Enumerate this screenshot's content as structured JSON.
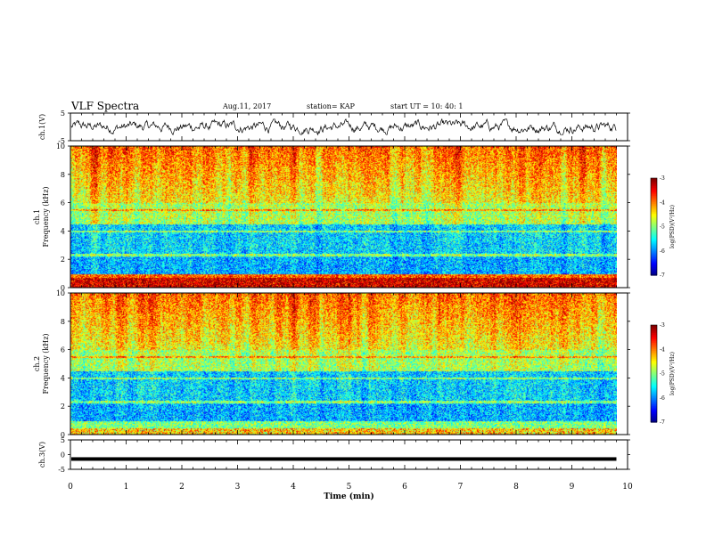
{
  "header": {
    "title": "VLF Spectra",
    "date": "Aug.11, 2017",
    "station": "station= KAP",
    "start": "start UT =  10: 40: 1"
  },
  "chart_data": [
    {
      "type": "line",
      "ylabel": "ch.1(V)",
      "ylim": [
        -5,
        5
      ],
      "yticks": [
        "5",
        "-5"
      ],
      "xlim": [
        0,
        10
      ],
      "grid": false,
      "description_of_trace": "noisy waveform, roughly -2 to 2 V, data to ~9.8 min"
    },
    {
      "type": "heatmap",
      "ylabel": "ch.1 Frequency (kHz)",
      "ylim": [
        0,
        10
      ],
      "yticks": [
        "0",
        "2",
        "4",
        "6",
        "8",
        "10"
      ],
      "xlim": [
        0,
        10
      ],
      "data_end_min": 9.8,
      "colorbar": {
        "label": "log(PSD)(V²/Hz)",
        "range": [
          -7,
          -3
        ],
        "ticks": [
          "-3",
          "-4",
          "-5",
          "-6",
          "-7"
        ]
      }
    },
    {
      "type": "heatmap",
      "ylabel": "ch.2 Frequency (kHz)",
      "ylim": [
        0,
        10
      ],
      "yticks": [
        "0",
        "2",
        "4",
        "6",
        "8",
        "10"
      ],
      "xlim": [
        0,
        10
      ],
      "data_end_min": 9.8,
      "colorbar": {
        "label": "log(PSD)(V²/Hz)",
        "range": [
          -7,
          -3
        ],
        "ticks": [
          "-3",
          "-4",
          "-5",
          "-6",
          "-7"
        ]
      }
    },
    {
      "type": "line",
      "ylabel": "ch.3(V)",
      "ylim": [
        -5,
        5
      ],
      "yticks": [
        "5",
        "0",
        "-5"
      ],
      "xlim": [
        0,
        10
      ],
      "trace_value": -1.5
    }
  ],
  "xaxis": {
    "label": "Time (min)",
    "ticks": [
      "0",
      "1",
      "2",
      "3",
      "4",
      "5",
      "6",
      "7",
      "8",
      "9",
      "10"
    ]
  },
  "colors": {
    "axes": "#000000",
    "background": "#ffffff"
  }
}
